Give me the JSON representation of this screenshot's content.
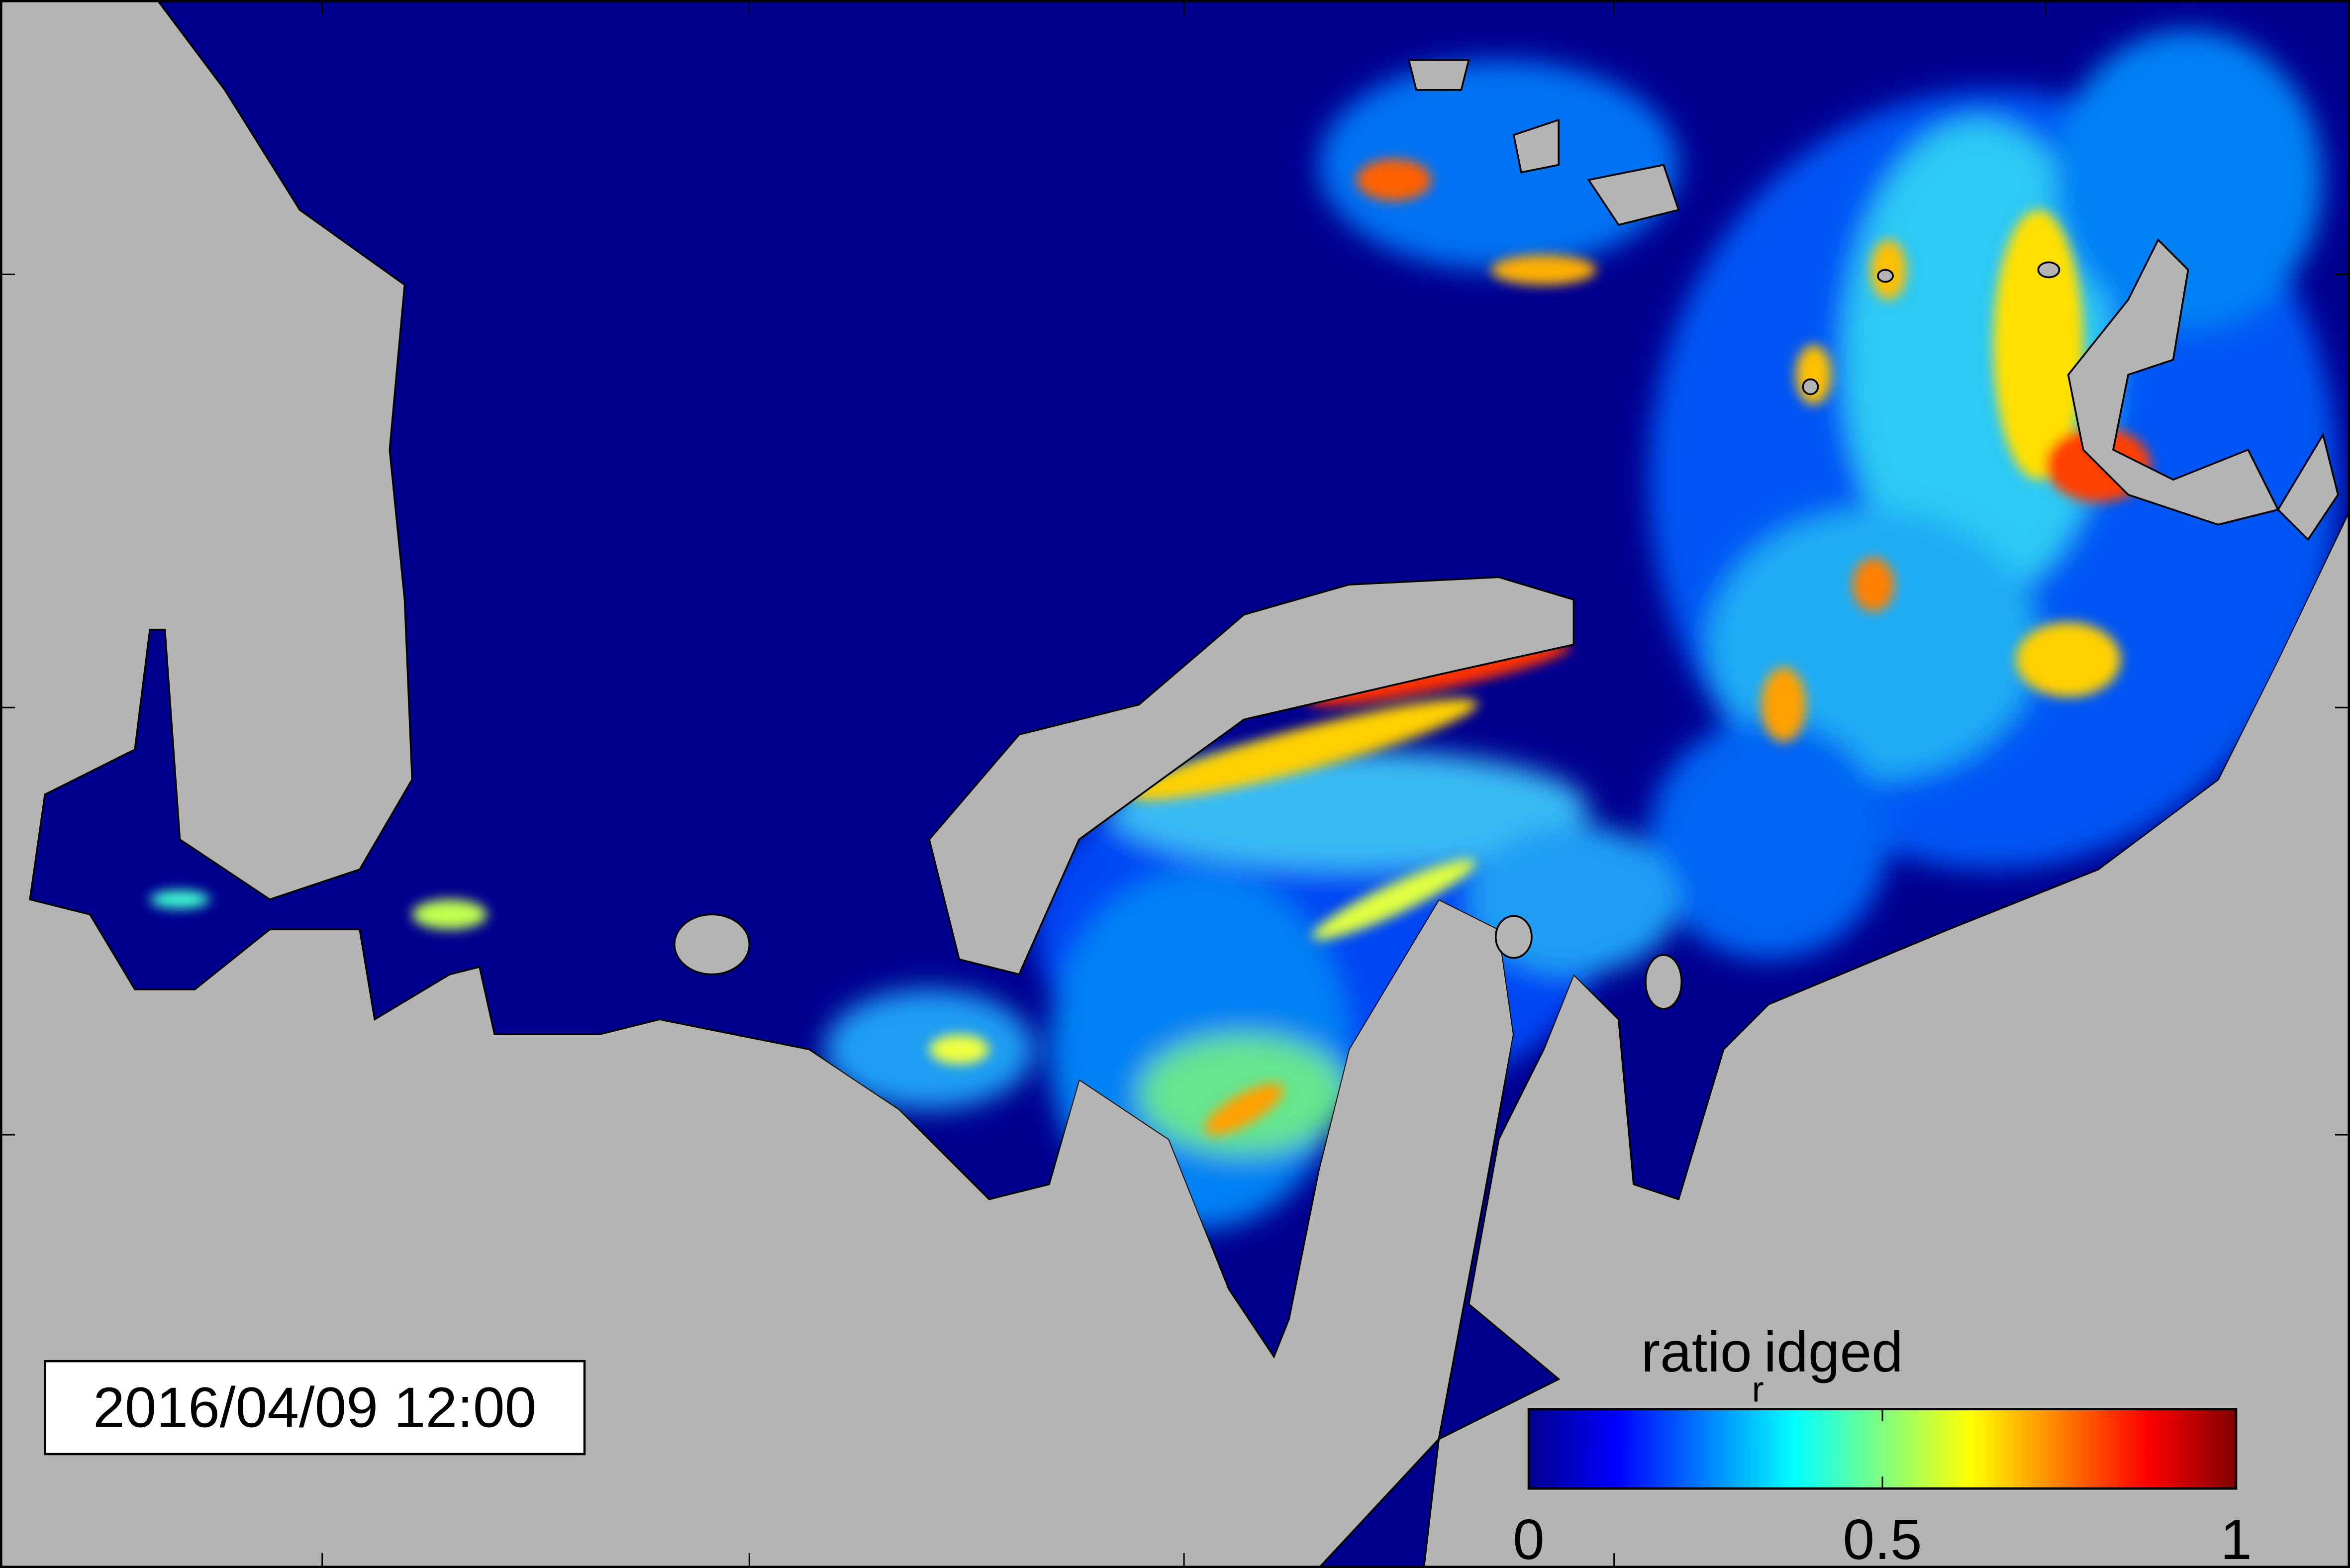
{
  "timestamp": "2016/04/09 12:00",
  "colorbar": {
    "title": "ratio",
    "title_subscript": "r",
    "title_rest": "idged",
    "lim": [
      0,
      1
    ],
    "ticks": [
      0,
      0.5,
      1
    ]
  }
}
